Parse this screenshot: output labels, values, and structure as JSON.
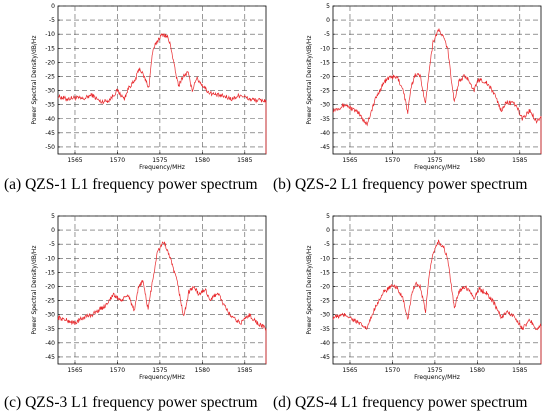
{
  "colors": {
    "trace": "#e8262a",
    "grid": "#555555",
    "axis": "#000000"
  },
  "chart_data": [
    {
      "type": "line",
      "caption": "(a) QZS-1 L1 frequency power spectrum",
      "xlabel": "Frequency/MHz",
      "ylabel": "Power Spectral Density/dB/Hz",
      "xlim": [
        1563,
        1587.5
      ],
      "ylim": [
        -52.5,
        0
      ],
      "xticks": [
        1565,
        1570,
        1575,
        1580,
        1585
      ],
      "yticks": [
        0,
        -5,
        -10,
        -15,
        -20,
        -25,
        -30,
        -35,
        -40,
        -45,
        -50
      ],
      "grid": true,
      "series": [
        {
          "x": [
            1563,
            1564,
            1565,
            1566,
            1567,
            1568,
            1569,
            1570,
            1570.8,
            1571.4,
            1572,
            1572.6,
            1573.2,
            1573.7,
            1574.1,
            1574.5,
            1575,
            1575.42,
            1575.9,
            1576.3,
            1576.8,
            1577.2,
            1577.6,
            1578.3,
            1578.8,
            1579.3,
            1580,
            1580.7,
            1581.5,
            1582.5,
            1583.5,
            1584.5,
            1585.5,
            1586.5,
            1587.5
          ],
          "y": [
            -32,
            -33,
            -32.5,
            -33,
            -31.5,
            -34,
            -33.5,
            -30,
            -33,
            -28.5,
            -27,
            -22,
            -25.5,
            -29,
            -17,
            -13.5,
            -11,
            -10,
            -11,
            -14.5,
            -23,
            -28.5,
            -25.5,
            -23.5,
            -30,
            -25.5,
            -28,
            -30.5,
            -31.5,
            -32,
            -33,
            -31.5,
            -33,
            -33.5,
            -33.5
          ]
        }
      ]
    },
    {
      "type": "line",
      "caption": "(b) QZS-2 L1 frequency power spectrum",
      "xlabel": "Frequency/MHz",
      "ylabel": "Power Spectral Density/dB/Hz",
      "xlim": [
        1563,
        1587.5
      ],
      "ylim": [
        -47.5,
        5
      ],
      "xticks": [
        1565,
        1570,
        1575,
        1580,
        1585
      ],
      "yticks": [
        5,
        0,
        -5,
        -10,
        -15,
        -20,
        -25,
        -30,
        -35,
        -40,
        -45
      ],
      "grid": true,
      "series": [
        {
          "x": [
            1563,
            1564.5,
            1566,
            1567,
            1568,
            1569,
            1569.8,
            1570.6,
            1571.3,
            1571.8,
            1572.2,
            1572.7,
            1573.3,
            1573.9,
            1574.3,
            1574.8,
            1575.42,
            1576,
            1576.5,
            1576.9,
            1577.3,
            1577.8,
            1578.4,
            1579,
            1579.6,
            1580.2,
            1581,
            1582,
            1582.8,
            1583.5,
            1584.5,
            1585.3,
            1586.2,
            1587,
            1587.5
          ],
          "y": [
            -32,
            -30,
            -33,
            -37,
            -28,
            -22,
            -20,
            -20.5,
            -25,
            -33,
            -24,
            -19,
            -20,
            -30,
            -18,
            -7.5,
            -3.5,
            -6,
            -10,
            -20,
            -29,
            -22,
            -20,
            -21,
            -25,
            -21,
            -22,
            -26,
            -32,
            -29,
            -30,
            -35,
            -32,
            -36,
            -34
          ]
        }
      ]
    },
    {
      "type": "line",
      "caption": "(c) QZS-3 L1 frequency power spectrum",
      "xlabel": "Frequency/MHz",
      "ylabel": "Power Spectral Density/dB/Hz",
      "xlim": [
        1563,
        1587.5
      ],
      "ylim": [
        -47.5,
        5
      ],
      "xticks": [
        1565,
        1570,
        1575,
        1580,
        1585
      ],
      "yticks": [
        5,
        0,
        -5,
        -10,
        -15,
        -20,
        -25,
        -30,
        -35,
        -40,
        -45
      ],
      "grid": true,
      "series": [
        {
          "x": [
            1563,
            1564,
            1565,
            1566,
            1567,
            1568.5,
            1569.5,
            1570.5,
            1571.3,
            1572,
            1572.5,
            1573,
            1573.6,
            1574.2,
            1574.7,
            1575.42,
            1576,
            1576.5,
            1577,
            1577.4,
            1577.8,
            1578.4,
            1579,
            1579.6,
            1580.3,
            1581,
            1581.8,
            1582.6,
            1583.5,
            1584.5,
            1585.5,
            1586.5,
            1587.5
          ],
          "y": [
            -31,
            -32,
            -33,
            -31,
            -30,
            -27,
            -23,
            -25,
            -23,
            -29,
            -20,
            -18,
            -28,
            -17,
            -8,
            -4,
            -8,
            -13,
            -18,
            -24,
            -31,
            -22,
            -20,
            -23,
            -21,
            -25,
            -22,
            -27,
            -31,
            -33,
            -30,
            -33,
            -35
          ]
        }
      ]
    },
    {
      "type": "line",
      "caption": "(d) QZS-4 L1 frequency power spectrum",
      "xlabel": "Frequency/MHz",
      "ylabel": "Power Spectral Density/dB/Hz",
      "xlim": [
        1563,
        1587.5
      ],
      "ylim": [
        -47.5,
        5
      ],
      "xticks": [
        1565,
        1570,
        1575,
        1580,
        1585
      ],
      "yticks": [
        5,
        0,
        -5,
        -10,
        -15,
        -20,
        -25,
        -30,
        -35,
        -40,
        -45
      ],
      "grid": true,
      "series": [
        {
          "x": [
            1563,
            1564.5,
            1566,
            1567,
            1568,
            1569,
            1569.8,
            1570.6,
            1571.3,
            1571.8,
            1572.2,
            1572.7,
            1573.3,
            1573.9,
            1574.3,
            1574.8,
            1575.42,
            1576,
            1576.5,
            1576.9,
            1577.3,
            1577.8,
            1578.4,
            1579,
            1579.6,
            1580.2,
            1581,
            1582,
            1582.8,
            1583.5,
            1584.5,
            1585.3,
            1586.2,
            1587,
            1587.5
          ],
          "y": [
            -31,
            -30,
            -33,
            -35,
            -27,
            -22,
            -20,
            -20.5,
            -25,
            -32,
            -24,
            -19,
            -20,
            -29,
            -17,
            -8,
            -4,
            -6,
            -10,
            -19,
            -28,
            -22,
            -20,
            -21,
            -24,
            -21,
            -22,
            -26,
            -31,
            -29,
            -31,
            -35,
            -32,
            -35,
            -34
          ]
        }
      ]
    }
  ]
}
